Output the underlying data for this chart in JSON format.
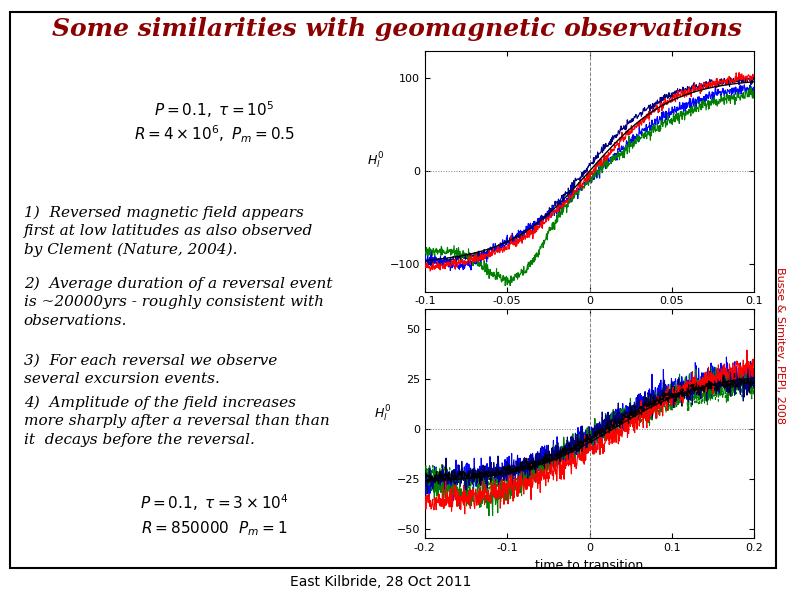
{
  "title": "Some similarities with geomagnetic observations",
  "title_color": "#8B0000",
  "title_fontsize": 18,
  "background_color": "#FFFFFF",
  "border_color": "#000000",
  "footer": "East Kilbride, 28 Oct 2011",
  "footer_fontsize": 10,
  "side_text": "Busse & Simitev, PEPI, 2008",
  "side_text_color": "#CC0000",
  "equation_top_line1": "$P = 0.1,\\ \\tau = 10^5$",
  "equation_top_line2": "$R = 4 \\times 10^6,\\ P_m = 0.5$",
  "equation_bot_line1": "$P = 0.1,\\ \\tau = 3 \\times 10^4$",
  "equation_bot_line2": "$R = 850000\\ \\ P_m = 1$",
  "bullet1": "1)  Reversed magnetic field appears\nfirst at low latitudes as also observed\nby Clement (Nature, 2004).",
  "bullet2": "2)  Average duration of a reversal event\nis ~20000yrs - roughly consistent with\nobservations.",
  "bullet3": "3)  For each reversal we observe\nseveral excursion events.",
  "bullet4": "4)  Amplitude of the field increases\nmore sharply after a reversal than than\nit  decays before the reversal.",
  "text_fontsize": 11,
  "eq_fontsize": 11,
  "plot1_xlim": [
    -0.1,
    0.1
  ],
  "plot1_ylim": [
    -130,
    130
  ],
  "plot1_yticks": [
    -100,
    0,
    100
  ],
  "plot1_xticks": [
    -0.1,
    -0.05,
    0,
    0.05,
    0.1
  ],
  "plot2_xlim": [
    -0.2,
    0.2
  ],
  "plot2_ylim": [
    -55,
    60
  ],
  "plot2_yticks": [
    -50,
    -25,
    0,
    25,
    50
  ],
  "plot2_xticks": [
    -0.2,
    -0.1,
    0,
    0.1,
    0.2
  ]
}
